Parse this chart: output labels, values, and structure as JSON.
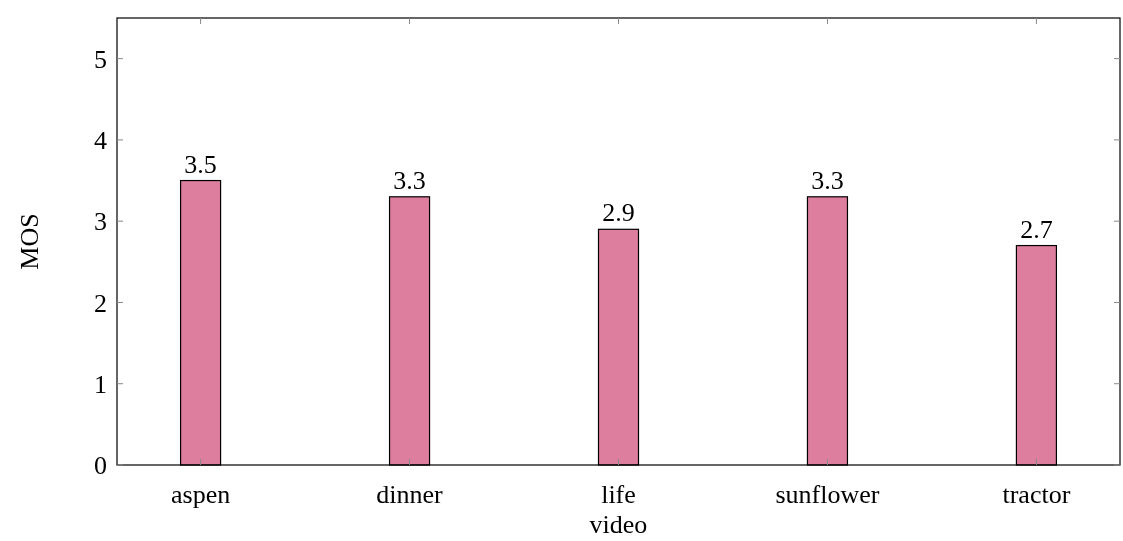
{
  "chart_data": {
    "type": "bar",
    "ylabel": "MOS",
    "categories": [
      "aspen",
      "dinner",
      "life video",
      "sunflower",
      "tractor"
    ],
    "values": [
      3.5,
      3.3,
      2.9,
      3.3,
      2.7
    ],
    "color": "#dd7e9e",
    "ylim": [
      0,
      5.5
    ],
    "yticks": [
      0,
      1,
      2,
      3,
      4,
      5
    ],
    "grid": false,
    "data_labels": true
  }
}
